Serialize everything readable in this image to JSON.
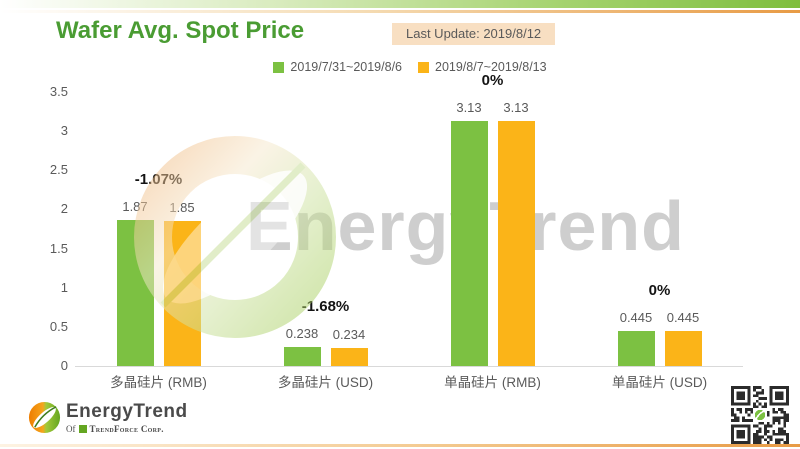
{
  "header": {
    "title": "Wafer Avg. Spot Price",
    "last_update": "Last Update: 2019/8/12"
  },
  "legend": {
    "items": [
      {
        "label": "2019/7/31~2019/8/6",
        "color": "#7cc142"
      },
      {
        "label": "2019/8/7~2019/8/13",
        "color": "#fbb418"
      }
    ]
  },
  "chart_data": {
    "type": "bar",
    "title": "Wafer Avg. Spot Price",
    "categories": [
      "多晶硅片 (RMB)",
      "多晶硅片 (USD)",
      "单晶硅片 (RMB)",
      "单晶硅片 (USD)"
    ],
    "series": [
      {
        "name": "2019/7/31~2019/8/6",
        "color": "#7cc142",
        "values": [
          1.87,
          0.238,
          3.13,
          0.445
        ]
      },
      {
        "name": "2019/8/7~2019/8/13",
        "color": "#fbb418",
        "values": [
          1.85,
          0.234,
          3.13,
          0.445
        ]
      }
    ],
    "value_labels": [
      [
        "1.87",
        "1.85"
      ],
      [
        "0.238",
        "0.234"
      ],
      [
        "3.13",
        "3.13"
      ],
      [
        "0.445",
        "0.445"
      ]
    ],
    "change_labels": [
      "-1.07%",
      "-1.68%",
      "0%",
      "0%"
    ],
    "ylim": [
      0,
      3.5
    ],
    "yticks": [
      "3.5",
      "3",
      "2.5",
      "2",
      "1.5",
      "1",
      "0.5",
      "0"
    ],
    "grid": false,
    "legend_position": "top-center"
  },
  "watermark": {
    "text": "EnergyTrend"
  },
  "footer": {
    "logo": {
      "text": "EnergyTrend",
      "sub_prefix": "Of",
      "company": "TrendForce Corp."
    },
    "icons": {
      "leaf_logo": "leaf-circle-icon",
      "qr": "qr-code-icon",
      "trendforce": "trendforce-square-icon"
    }
  },
  "colors": {
    "bar_green": "#7cc142",
    "bar_orange": "#fbb418",
    "title_green": "#4a9c33",
    "badge_bg": "#f8dfc2",
    "text_gray": "#5a5a5a",
    "watermark_gray": "#c2c2c2"
  }
}
